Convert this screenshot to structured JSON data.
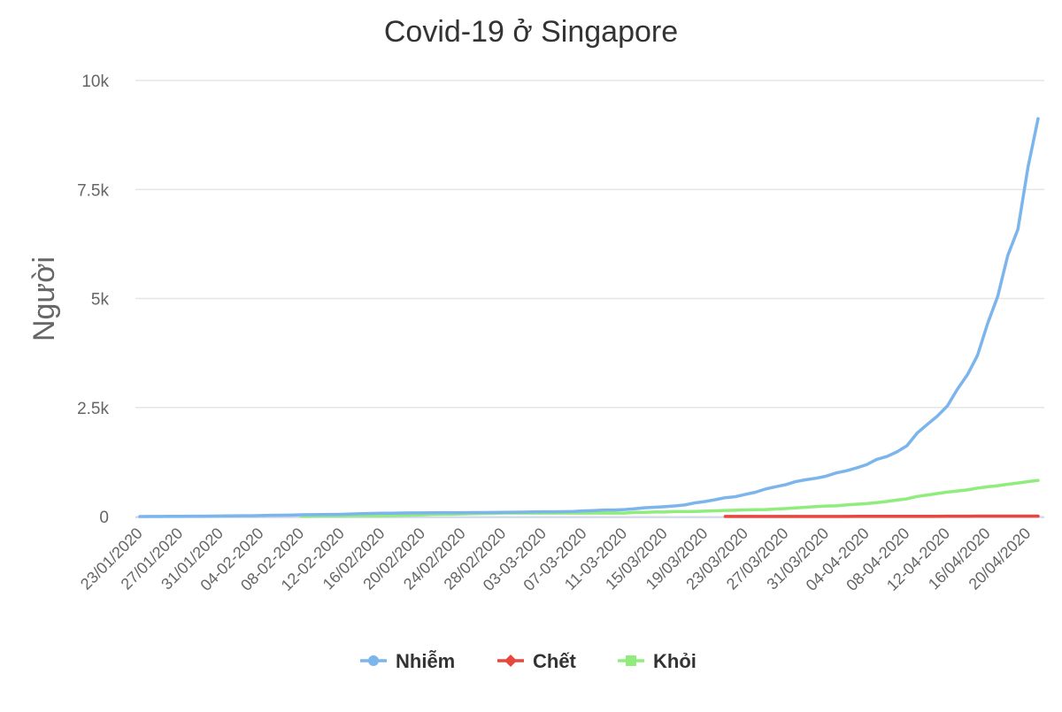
{
  "chart_data": {
    "type": "line",
    "title": "Covid-19 ở Singapore",
    "xlabel": "",
    "ylabel": "Người",
    "ylim": [
      0,
      10000
    ],
    "yticks": [
      {
        "value": 0,
        "label": "0"
      },
      {
        "value": 2500,
        "label": "2.5k"
      },
      {
        "value": 5000,
        "label": "5k"
      },
      {
        "value": 7500,
        "label": "7.5k"
      },
      {
        "value": 10000,
        "label": "10k"
      }
    ],
    "grid": true,
    "legend_position": "bottom",
    "xtick_labels": [
      "23/01/2020",
      "27/01/2020",
      "31/01/2020",
      "04-02-2020",
      "08-02-2020",
      "12-02-2020",
      "16/02/2020",
      "20/02/2020",
      "24/02/2020",
      "28/02/2020",
      "03-03-2020",
      "07-03-2020",
      "11-03-2020",
      "15/03/2020",
      "19/03/2020",
      "23/03/2020",
      "27/03/2020",
      "31/03/2020",
      "04-04-2020",
      "08-04-2020",
      "12-04-2020",
      "16/04/2020",
      "20/04/2020"
    ],
    "xtick_every": 4,
    "x_start": "23/01/2020",
    "x_end": "21/04/2020",
    "num_points": 90,
    "series": [
      {
        "name": "Nhiễm",
        "color": "#7cb5ec",
        "marker": "circle",
        "values": [
          1,
          3,
          3,
          4,
          5,
          7,
          7,
          10,
          13,
          16,
          18,
          18,
          24,
          28,
          30,
          33,
          40,
          43,
          45,
          47,
          50,
          58,
          67,
          72,
          75,
          77,
          81,
          84,
          84,
          85,
          89,
          89,
          89,
          90,
          91,
          93,
          96,
          98,
          102,
          106,
          108,
          110,
          112,
          117,
          130,
          138,
          150,
          150,
          160,
          178,
          200,
          212,
          226,
          243,
          266,
          313,
          345,
          385,
          432,
          455,
          509,
          558,
          631,
          683,
          732,
          802,
          844,
          879,
          926,
          1000,
          1049,
          1114,
          1189,
          1309,
          1375,
          1481,
          1623,
          1910,
          2108,
          2299,
          2532,
          2918,
          3252,
          3699,
          4427,
          5050,
          5992,
          6588,
          8014,
          9125
        ]
      },
      {
        "name": "Chết",
        "color": "#e8473f",
        "marker": "diamond",
        "values": [
          null,
          null,
          null,
          null,
          null,
          null,
          null,
          null,
          null,
          null,
          null,
          null,
          null,
          null,
          null,
          null,
          null,
          null,
          null,
          null,
          null,
          null,
          null,
          null,
          null,
          null,
          null,
          null,
          null,
          null,
          null,
          null,
          null,
          null,
          null,
          null,
          null,
          null,
          null,
          null,
          null,
          null,
          null,
          null,
          null,
          null,
          null,
          null,
          null,
          null,
          null,
          null,
          null,
          null,
          null,
          null,
          null,
          null,
          2,
          2,
          2,
          2,
          2,
          2,
          2,
          2,
          2,
          3,
          3,
          3,
          3,
          4,
          5,
          6,
          6,
          6,
          6,
          6,
          6,
          6,
          7,
          8,
          8,
          10,
          10,
          11,
          11,
          11,
          11,
          11
        ]
      },
      {
        "name": "Khỏi",
        "color": "#90ed7d",
        "marker": "square",
        "values": [
          null,
          null,
          null,
          null,
          null,
          null,
          null,
          null,
          null,
          null,
          null,
          null,
          null,
          null,
          null,
          null,
          7,
          7,
          15,
          15,
          15,
          17,
          17,
          18,
          18,
          24,
          29,
          34,
          37,
          51,
          53,
          53,
          62,
          66,
          72,
          74,
          78,
          78,
          78,
          78,
          78,
          78,
          78,
          78,
          78,
          78,
          78,
          78,
          78,
          96,
          97,
          105,
          105,
          114,
          114,
          117,
          124,
          131,
          140,
          144,
          152,
          156,
          160,
          172,
          183,
          198,
          212,
          228,
          240,
          245,
          266,
          282,
          297,
          320,
          344,
          377,
          406,
          460,
          492,
          528,
          560,
          586,
          611,
          652,
          683,
          708,
          740,
          768,
          801,
          828
        ]
      }
    ]
  },
  "legend": {
    "items": [
      {
        "label": "Nhiễm",
        "color": "#7cb5ec",
        "marker": "circle"
      },
      {
        "label": "Chết",
        "color": "#e8473f",
        "marker": "diamond"
      },
      {
        "label": "Khỏi",
        "color": "#90ed7d",
        "marker": "square"
      }
    ]
  },
  "colors": {
    "grid": "#e6e6e6",
    "axis_text": "#666666",
    "title_text": "#333333",
    "background": "#ffffff"
  }
}
